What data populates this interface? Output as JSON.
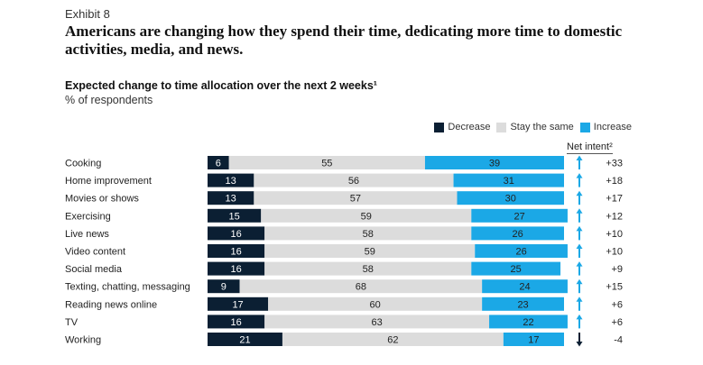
{
  "exhibit_label": "Exhibit 8",
  "headline": "Americans are changing how they spend their time, dedicating more time to domestic activities, media, and news.",
  "chart_data": {
    "type": "bar",
    "stacked": true,
    "orientation": "horizontal",
    "title": "Expected change to time allocation over the next 2 weeks¹",
    "subtitle": "% of respondents",
    "categories": [
      "Cooking",
      "Home improvement",
      "Movies or shows",
      "Exercising",
      "Live news",
      "Video content",
      "Social media",
      "Texting, chatting, messaging",
      "Reading news online",
      "TV",
      "Working"
    ],
    "series": [
      {
        "name": "Decrease",
        "color": "#0b1f33",
        "values": [
          6,
          13,
          13,
          15,
          16,
          16,
          16,
          9,
          17,
          16,
          21
        ]
      },
      {
        "name": "Stay the same",
        "color": "#dcdcdc",
        "values": [
          55,
          56,
          57,
          59,
          58,
          59,
          58,
          68,
          60,
          63,
          62
        ]
      },
      {
        "name": "Increase",
        "color": "#1ba8e6",
        "values": [
          39,
          31,
          30,
          27,
          26,
          26,
          25,
          24,
          23,
          22,
          17
        ]
      }
    ],
    "net_intent": {
      "label": "Net intent²",
      "values": [
        "+33",
        "+18",
        "+17",
        "+12",
        "+10",
        "+10",
        "+9",
        "+15",
        "+6",
        "+6",
        "-4"
      ],
      "directions": [
        "up",
        "up",
        "up",
        "up",
        "up",
        "up",
        "up",
        "up",
        "up",
        "up",
        "down"
      ],
      "up_color": "#1ba8e6",
      "down_color": "#0b1f33"
    },
    "legend_position": "top-right",
    "xlim": [
      0,
      100
    ]
  }
}
